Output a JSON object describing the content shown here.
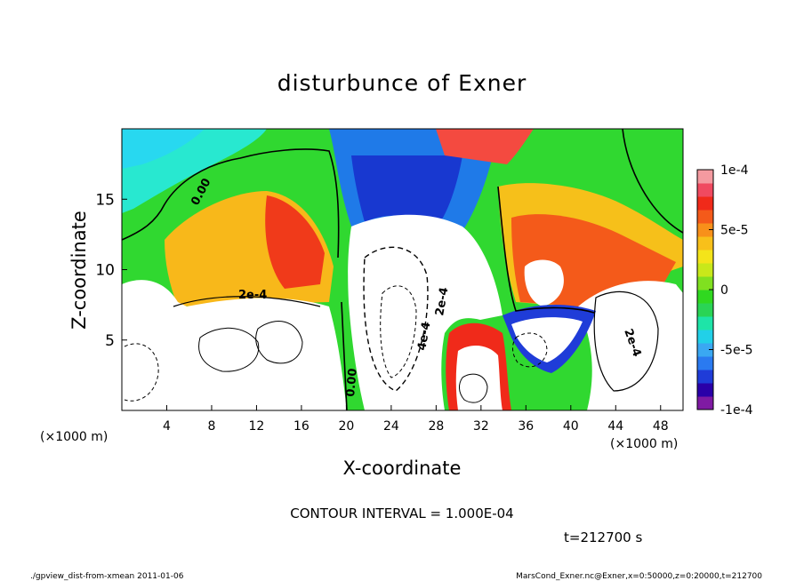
{
  "chart_data": {
    "type": "heatmap",
    "title": "disturbunce of Exner",
    "xlabel": "X-coordinate",
    "ylabel": "Z-coordinate",
    "x_unit_label": "(×1000 m)",
    "x_unit_label_right": "(×1000 m)",
    "xlim": [
      0,
      50
    ],
    "ylim": [
      0,
      20
    ],
    "x_ticks": [
      4,
      8,
      12,
      16,
      20,
      24,
      28,
      32,
      36,
      40,
      44,
      48
    ],
    "y_ticks": [
      5,
      10,
      15
    ],
    "colorbar": {
      "range": [
        -0.0001,
        0.0001
      ],
      "tick_labels": [
        "1e-4",
        "5e-5",
        "0",
        "-5e-5",
        "-1e-4"
      ],
      "tick_values": [
        0.0001,
        5e-05,
        0,
        -5e-05,
        -0.0001
      ],
      "colors": [
        "#7f1aa3",
        "#2a00a8",
        "#1f3cd8",
        "#2a7af0",
        "#3aa8f2",
        "#22d0e8",
        "#1ee4a8",
        "#2ad455",
        "#30d820",
        "#80e020",
        "#c8e81a",
        "#f4e41a",
        "#f8c01a",
        "#f8901a",
        "#f45a1a",
        "#f02a1a",
        "#f04a60",
        "#f49aa0"
      ]
    },
    "contour_interval_text": "CONTOUR INTERVAL = 1.000E-04",
    "contour_labels": [
      "0.00",
      "2e-4",
      "2e-4",
      "4e-4",
      "0.00",
      "2e-4"
    ],
    "time_text": "t=212700 s"
  },
  "footer": {
    "left": "./gpview_dist-from-xmean  2011-01-06",
    "right": "MarsCond_Exner.nc@Exner,x=0:50000,z=0:20000,t=212700"
  }
}
